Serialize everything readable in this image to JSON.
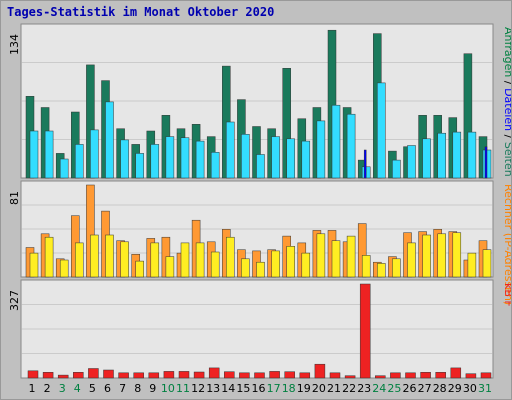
{
  "title": "Tages-Statistik im Monat Oktober 2020",
  "colors": {
    "background": "#c0c0c0",
    "panel": "#e6e6e6",
    "grid": "#b0b0b0",
    "seiten": "#1a7a5c",
    "dateien": "#33ddff",
    "rechner": "#ff9933",
    "ip": "#ffee22",
    "kb": "#ee2222",
    "weekend_day": "#008040",
    "weekday": "#000000",
    "anfragen_label": "#008040",
    "dateien_label": "#0000ff",
    "rechner_label": "#ff8000"
  },
  "chart_data": {
    "type": "bar",
    "days": [
      "1",
      "2",
      "3",
      "4",
      "5",
      "6",
      "7",
      "8",
      "9",
      "10",
      "11",
      "12",
      "13",
      "14",
      "15",
      "16",
      "17",
      "18",
      "19",
      "20",
      "21",
      "22",
      "23",
      "24",
      "25",
      "26",
      "27",
      "28",
      "29",
      "30",
      "31"
    ],
    "weekend_days": [
      "3",
      "4",
      "10",
      "11",
      "17",
      "18",
      "24",
      "25",
      "31"
    ],
    "panels": [
      {
        "ymax": "134",
        "right_label": [
          {
            "text": "Anfragen",
            "color": "#008040"
          },
          {
            "text": " / ",
            "color": "#000000"
          },
          {
            "text": "Dateien",
            "color": "#0000ff"
          },
          {
            "text": " / ",
            "color": "#000000"
          },
          {
            "text": "Seiten",
            "color": "#1a7a5c"
          }
        ],
        "ymax_value": 134,
        "series": [
          {
            "name": "Anfragen",
            "color": "#1a7a5c",
            "values": [
              73,
              63,
              22,
              59,
              101,
              87,
              44,
              30,
              42,
              56,
              44,
              48,
              37,
              100,
              70,
              46,
              44,
              98,
              53,
              63,
              132,
              63,
              16,
              129,
              24,
              28,
              56,
              56,
              54,
              111,
              37
            ]
          },
          {
            "name": "Dateien",
            "color": "#33ddff",
            "values": [
              42,
              42,
              17,
              30,
              43,
              68,
              34,
              22,
              30,
              37,
              36,
              33,
              23,
              50,
              39,
              21,
              37,
              35,
              33,
              51,
              65,
              57,
              10,
              85,
              16,
              29,
              35,
              40,
              41,
              41,
              25
            ]
          },
          {
            "name": "Seiten",
            "color": "#0000ff",
            "values": [
              0,
              0,
              0,
              0,
              0,
              0,
              0,
              0,
              0,
              0,
              0,
              0,
              0,
              0,
              0,
              0,
              0,
              0,
              0,
              0,
              0,
              0,
              25,
              0,
              0,
              0,
              0,
              0,
              0,
              0,
              28
            ]
          }
        ]
      },
      {
        "ymax": "81",
        "right_label": [
          {
            "text": "Rechner",
            "color": "#ff8000"
          },
          {
            "text": " (IP-Adressen)",
            "color": "#ff8000"
          }
        ],
        "ymax_value": 81,
        "series": [
          {
            "name": "Rechner",
            "color": "#ff9933",
            "values": [
              26,
              38,
              16,
              54,
              81,
              58,
              32,
              20,
              34,
              35,
              21,
              50,
              31,
              42,
              24,
              23,
              24,
              36,
              30,
              41,
              41,
              31,
              47,
              13,
              18,
              39,
              40,
              42,
              40,
              15,
              32
            ]
          },
          {
            "name": "IP-Adressen",
            "color": "#ffee22",
            "values": [
              21,
              35,
              15,
              30,
              37,
              37,
              31,
              14,
              30,
              18,
              30,
              30,
              22,
              35,
              16,
              13,
              23,
              27,
              21,
              38,
              32,
              36,
              19,
              12,
              16,
              30,
              37,
              38,
              39,
              21,
              24
            ]
          }
        ]
      },
      {
        "ymax": "327",
        "right_label": [
          {
            "text": "kB F",
            "color": "#ee2222"
          }
        ],
        "ymax_value": 327,
        "series": [
          {
            "name": "kB F",
            "color": "#ee2222",
            "values": [
              25,
              20,
              10,
              20,
              33,
              28,
              18,
              18,
              18,
              23,
              23,
              21,
              35,
              22,
              18,
              18,
              23,
              22,
              18,
              48,
              18,
              8,
              327,
              8,
              18,
              18,
              20,
              20,
              35,
              15,
              18
            ]
          }
        ]
      }
    ]
  }
}
